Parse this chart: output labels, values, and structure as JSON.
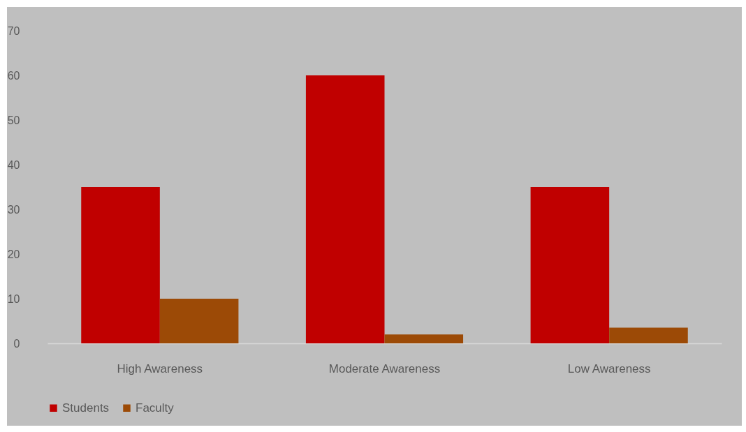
{
  "chart_data": {
    "type": "bar",
    "categories": [
      "High Awareness",
      "Moderate Awareness",
      "Low Awareness"
    ],
    "series": [
      {
        "name": "Students",
        "color": "#c00000",
        "values": [
          35,
          60,
          35
        ]
      },
      {
        "name": "Faculty",
        "color": "#9c4a06",
        "values": [
          10,
          2,
          3.5
        ]
      }
    ],
    "ylim": [
      0,
      70
    ],
    "yticks": [
      0,
      10,
      20,
      30,
      40,
      50,
      60,
      70
    ],
    "grid": false,
    "legend": "bottom"
  }
}
